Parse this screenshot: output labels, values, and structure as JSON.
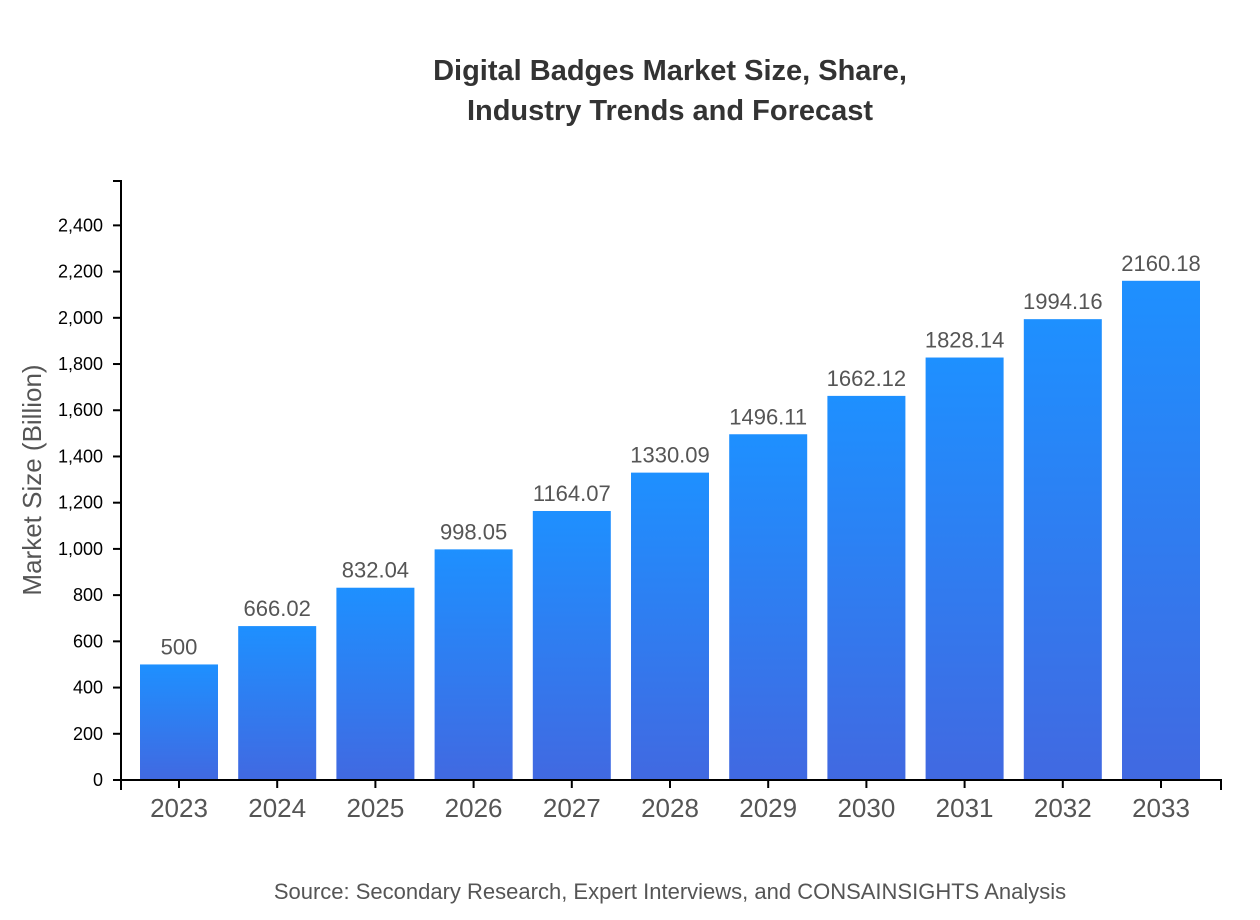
{
  "chart_data": {
    "type": "bar",
    "title": [
      "Digital Badges Market Size, Share,",
      "Industry Trends and Forecast"
    ],
    "xlabel": "",
    "ylabel": "Market Size (Billion)",
    "categories": [
      "2023",
      "2024",
      "2025",
      "2026",
      "2027",
      "2028",
      "2029",
      "2030",
      "2031",
      "2032",
      "2033"
    ],
    "values": [
      500,
      666.02,
      832.04,
      998.05,
      1164.07,
      1330.09,
      1496.11,
      1662.12,
      1828.14,
      1994.16,
      2160.18
    ],
    "data_labels": [
      "500",
      "666.02",
      "832.04",
      "998.05",
      "1164.07",
      "1330.09",
      "1496.11",
      "1662.12",
      "1828.14",
      "1994.16",
      "2160.18"
    ],
    "ylim": [
      0,
      2592
    ],
    "yticks": [
      0,
      200,
      400,
      600,
      800,
      1000,
      1200,
      1400,
      1600,
      1800,
      2000,
      2200,
      2400
    ],
    "ytick_labels": [
      "0",
      "200",
      "400",
      "600",
      "800",
      "1,000",
      "1,200",
      "1,400",
      "1,600",
      "1,800",
      "2,000",
      "2,200",
      "2,400"
    ],
    "grid": false,
    "colors": {
      "bar_top": "#1e90ff",
      "bar_bottom": "#4169e1"
    },
    "source": "Source: Secondary Research, Expert Interviews, and CONSAINSIGHTS Analysis"
  }
}
